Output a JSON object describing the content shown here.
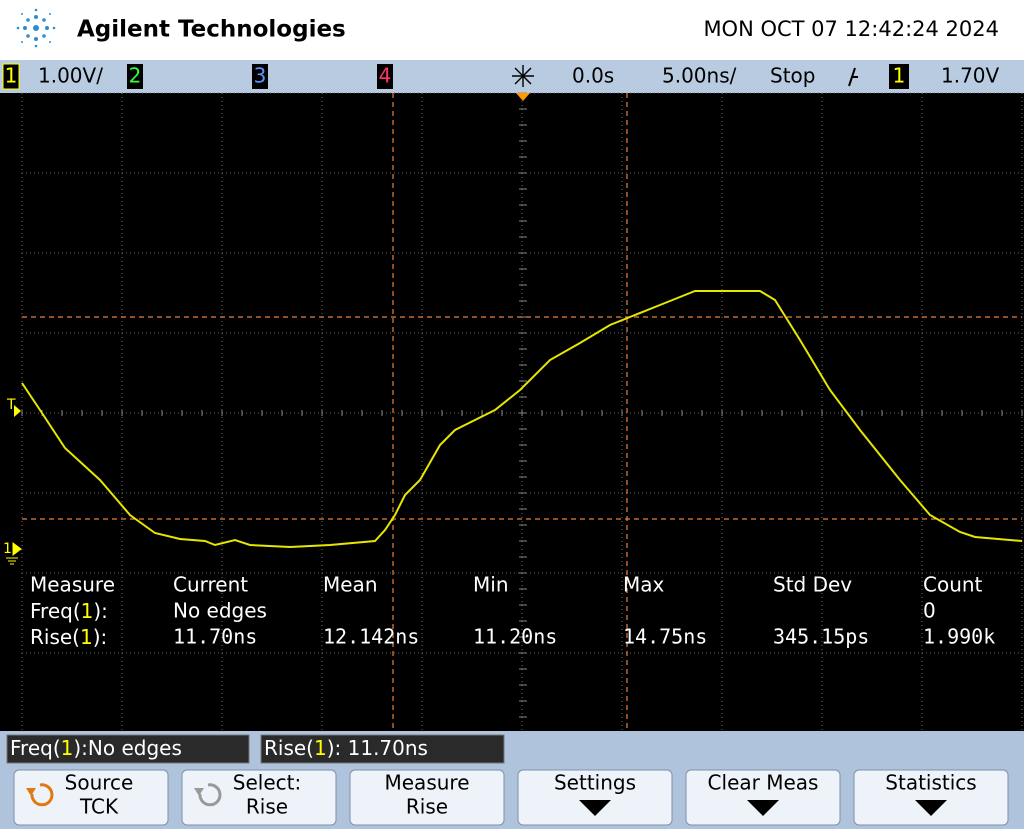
{
  "header": {
    "brand": "Agilent Technologies",
    "datetime": "MON OCT 07 12:42:24 2024"
  },
  "status_bar": {
    "ch1": "1",
    "ch1_scale": "1.00V/",
    "ch2": "2",
    "ch3": "3",
    "ch4": "4",
    "delay": "0.0s",
    "timebase": "5.00ns/",
    "run_state": "Stop",
    "trigger_source": "1",
    "trigger_level": "1.70V"
  },
  "markers": {
    "trigger": "T",
    "ground": "1"
  },
  "measurements": {
    "headers": [
      "Measure",
      "Current",
      "Mean",
      "Min",
      "Max",
      "Std Dev",
      "Count"
    ],
    "rows": [
      {
        "label_prefix": "Freq(",
        "channel": "1",
        "label_suffix": "):",
        "current": "No edges",
        "count": "0"
      },
      {
        "label_prefix": "Rise(",
        "channel": "1",
        "label_suffix": "):",
        "current": "11.70ns",
        "mean": "12.142ns",
        "min": "11.20ns",
        "max": "14.75ns",
        "std_dev": "345.15ps",
        "count": "1.990k"
      }
    ]
  },
  "readouts": [
    {
      "prefix": "Freq(",
      "channel": "1",
      "suffix": "):No edges"
    },
    {
      "prefix": "Rise(",
      "channel": "1",
      "suffix": "): 11.70ns"
    }
  ],
  "softkeys": [
    {
      "line1": "Source",
      "line2": "TCK"
    },
    {
      "line1": "Select:",
      "line2": "Rise"
    },
    {
      "line1": "Measure",
      "line2": "Rise"
    },
    {
      "line1": "Settings"
    },
    {
      "line1": "Clear Meas"
    },
    {
      "line1": "Statistics"
    }
  ]
}
